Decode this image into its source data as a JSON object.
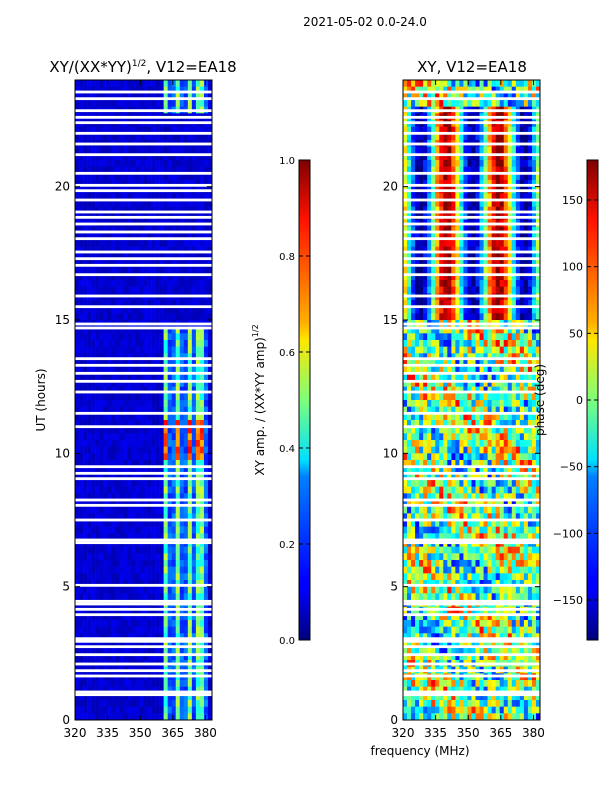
{
  "suptitle": "2021-05-02 0.0-24.0",
  "xlabel_shared": "frequency (MHz)",
  "ylabel_shared": "UT (hours)",
  "chart_data": [
    {
      "type": "heatmap",
      "title_main": "XY/(XX*YY)",
      "title_exp": "1/2",
      "title_suffix": ", V12=EA18",
      "x": {
        "ticks": [
          320,
          335,
          350,
          365,
          380
        ],
        "lim": [
          320,
          383
        ]
      },
      "y": {
        "ticks": [
          0,
          5,
          10,
          15,
          20
        ],
        "lim": [
          0,
          24
        ]
      },
      "active_band_mhz": [
        361,
        382
      ],
      "bright_band_hours": [
        9.8,
        11.2
      ],
      "colorbar": {
        "label_main": "XY amp. / (XX*YY amp)",
        "label_exp": "1/2",
        "ticks": [
          "0.0",
          "0.2",
          "0.4",
          "0.6",
          "0.8",
          "1.0"
        ],
        "range": [
          0.0,
          1.0
        ]
      }
    },
    {
      "type": "heatmap",
      "title": "XY, V12=EA18",
      "x": {
        "ticks": [
          320,
          335,
          350,
          365,
          380
        ],
        "lim": [
          320,
          383
        ]
      },
      "y": {
        "ticks": [
          0,
          5,
          10,
          15,
          20
        ],
        "lim": [
          0,
          24
        ]
      },
      "colorbar": {
        "label": "phase (deg)",
        "ticks": [
          "150",
          "100",
          "50",
          "0",
          "−50",
          "−100",
          "−150"
        ],
        "tick_values": [
          150,
          100,
          50,
          0,
          -50,
          -100,
          -150
        ],
        "range": [
          -180,
          180
        ]
      }
    }
  ],
  "flagged_hours": [
    0.95,
    1.05,
    1.65,
    1.85,
    2.1,
    2.45,
    2.75,
    2.95,
    3.05,
    3.95,
    4.15,
    4.35,
    4.45,
    5.05,
    6.65,
    6.75,
    7.5,
    8.05,
    8.25,
    9.05,
    9.25,
    9.5,
    11.0,
    11.5,
    12.3,
    12.7,
    13.0,
    13.3,
    13.55,
    14.7,
    14.85,
    15.5,
    15.9,
    16.7,
    17.05,
    17.3,
    17.55,
    18.05,
    18.3,
    18.6,
    18.85,
    19.05,
    19.5,
    19.85,
    20.05,
    20.5,
    21.2,
    21.6,
    22.0,
    22.4,
    22.6,
    22.85,
    23.3,
    23.55
  ]
}
